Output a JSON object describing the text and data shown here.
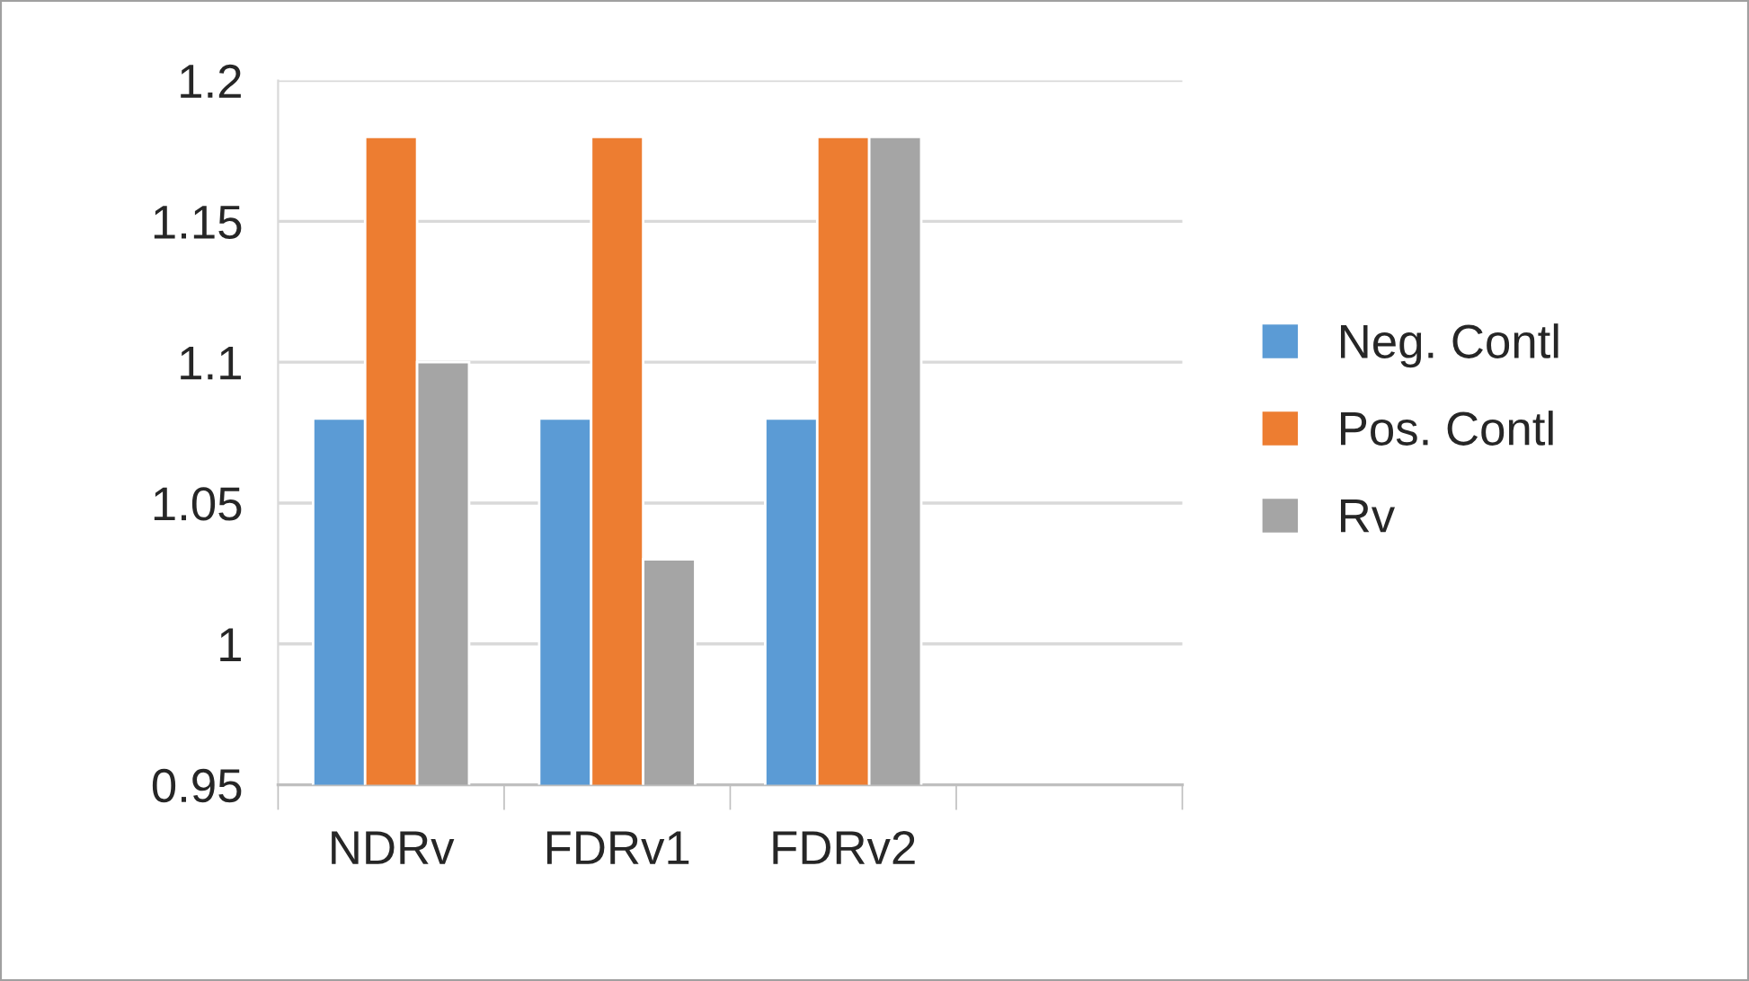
{
  "chart_data": {
    "type": "bar",
    "categories": [
      "NDRv",
      "FDRv1",
      "FDRv2",
      null
    ],
    "series": [
      {
        "name": "Neg. Contl",
        "color": "#5b9bd5",
        "values": [
          1.08,
          1.08,
          1.08,
          null
        ]
      },
      {
        "name": "Pos. Contl",
        "color": "#ed7d31",
        "values": [
          1.18,
          1.18,
          1.18,
          null
        ]
      },
      {
        "name": "Rv",
        "color": "#a5a5a5",
        "values": [
          1.1,
          1.03,
          1.18,
          null
        ]
      }
    ],
    "ylim": [
      0.95,
      1.2
    ],
    "yticks": [
      0.95,
      1,
      1.05,
      1.1,
      1.15,
      1.2
    ],
    "grid": "y",
    "legend": "right"
  }
}
